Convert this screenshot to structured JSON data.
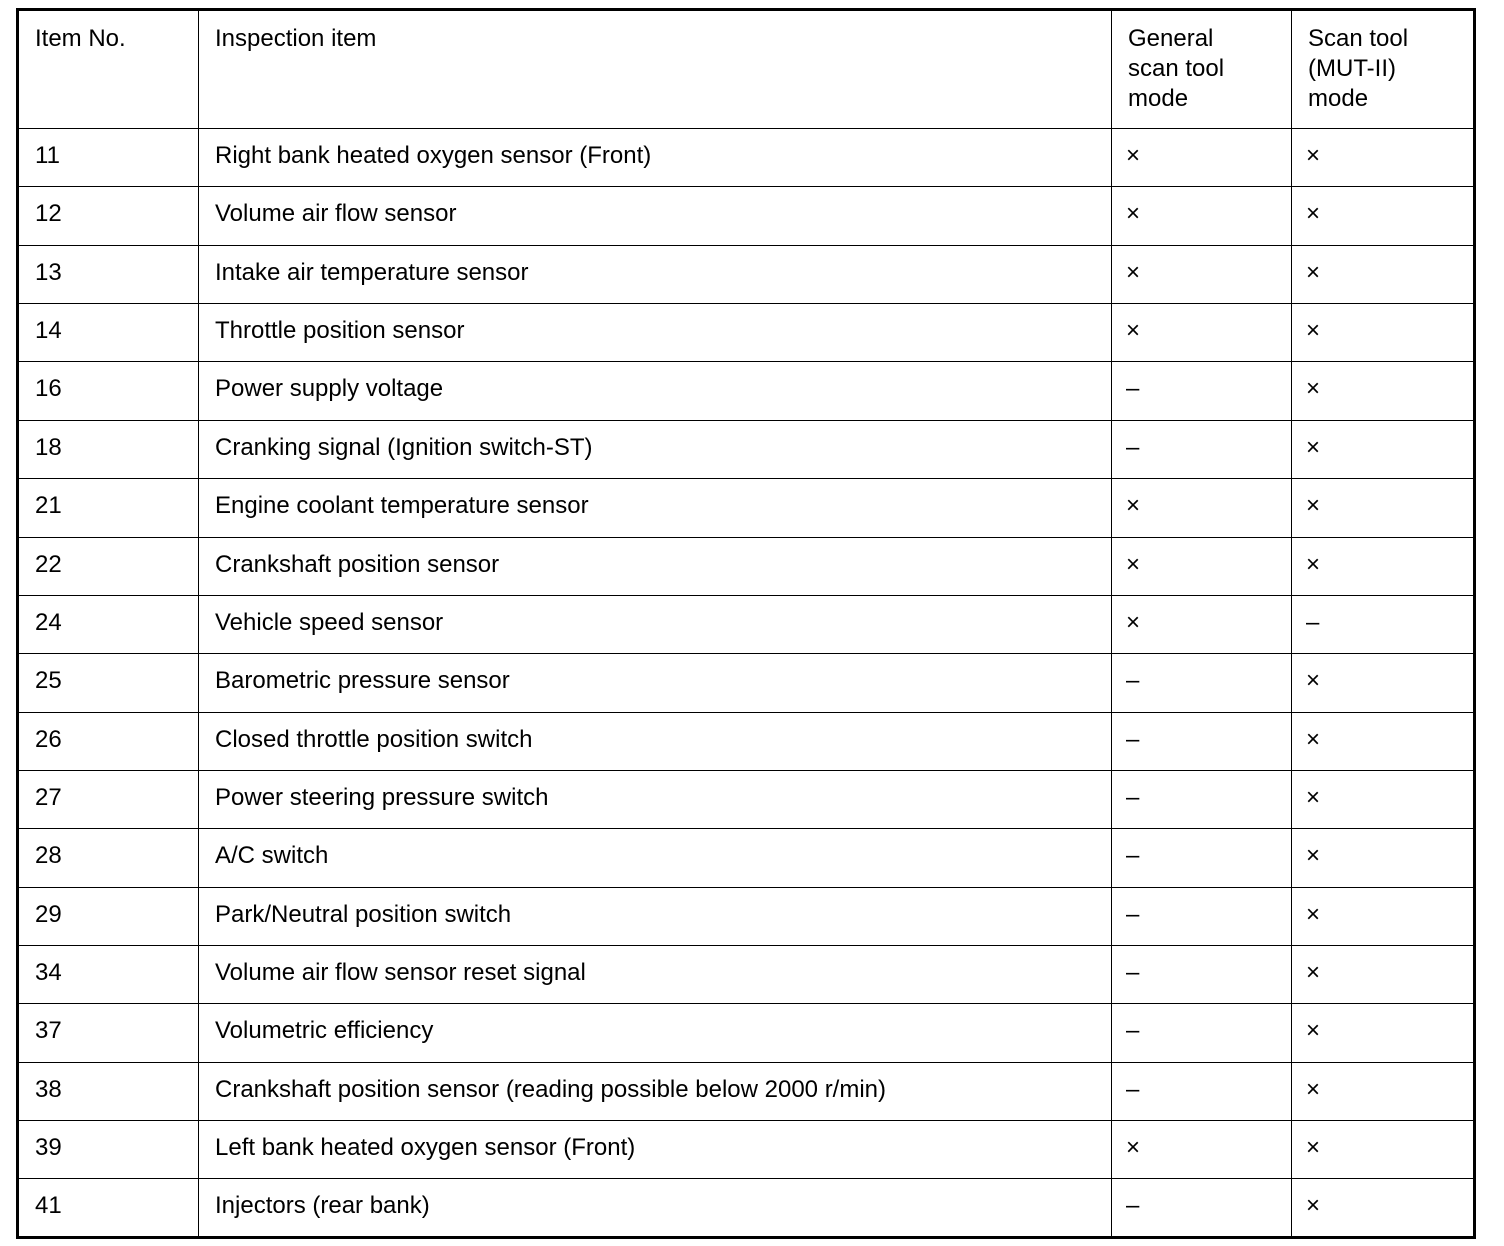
{
  "table": {
    "headers": {
      "item_no": "Item No.",
      "inspection_item": "Inspection item",
      "general_line1": "General",
      "general_line2": "scan tool",
      "general_line3": "mode",
      "mut_line1": "Scan tool",
      "mut_line2": "(MUT-II)",
      "mut_line3": "mode"
    },
    "rows": [
      {
        "no": "11",
        "item": "Right bank heated oxygen sensor (Front)",
        "general": "×",
        "mut": "×"
      },
      {
        "no": "12",
        "item": "Volume air flow sensor",
        "general": "×",
        "mut": "×"
      },
      {
        "no": "13",
        "item": "Intake air temperature sensor",
        "general": "×",
        "mut": "×"
      },
      {
        "no": "14",
        "item": "Throttle position sensor",
        "general": "×",
        "mut": "×"
      },
      {
        "no": "16",
        "item": "Power supply voltage",
        "general": "–",
        "mut": "×"
      },
      {
        "no": "18",
        "item": "Cranking signal (Ignition switch-ST)",
        "general": "–",
        "mut": "×"
      },
      {
        "no": "21",
        "item": "Engine coolant temperature sensor",
        "general": "×",
        "mut": "×"
      },
      {
        "no": "22",
        "item": "Crankshaft position sensor",
        "general": "×",
        "mut": "×"
      },
      {
        "no": "24",
        "item": "Vehicle speed sensor",
        "general": "×",
        "mut": "–"
      },
      {
        "no": "25",
        "item": "Barometric pressure sensor",
        "general": "–",
        "mut": "×"
      },
      {
        "no": "26",
        "item": "Closed throttle position switch",
        "general": "–",
        "mut": "×"
      },
      {
        "no": "27",
        "item": "Power steering pressure switch",
        "general": "–",
        "mut": "×"
      },
      {
        "no": "28",
        "item": "A/C switch",
        "general": "–",
        "mut": "×"
      },
      {
        "no": "29",
        "item": "Park/Neutral position switch",
        "general": "–",
        "mut": "×"
      },
      {
        "no": "34",
        "item": "Volume air flow sensor reset signal",
        "general": "–",
        "mut": "×"
      },
      {
        "no": "37",
        "item": "Volumetric efficiency",
        "general": "–",
        "mut": "×"
      },
      {
        "no": "38",
        "item": "Crankshaft position sensor (reading possible below 2000 r/min)",
        "general": "–",
        "mut": "×"
      },
      {
        "no": "39",
        "item": "Left bank heated oxygen sensor (Front)",
        "general": "×",
        "mut": "×"
      },
      {
        "no": "41",
        "item": "Injectors (rear bank)",
        "general": "–",
        "mut": "×"
      }
    ]
  }
}
